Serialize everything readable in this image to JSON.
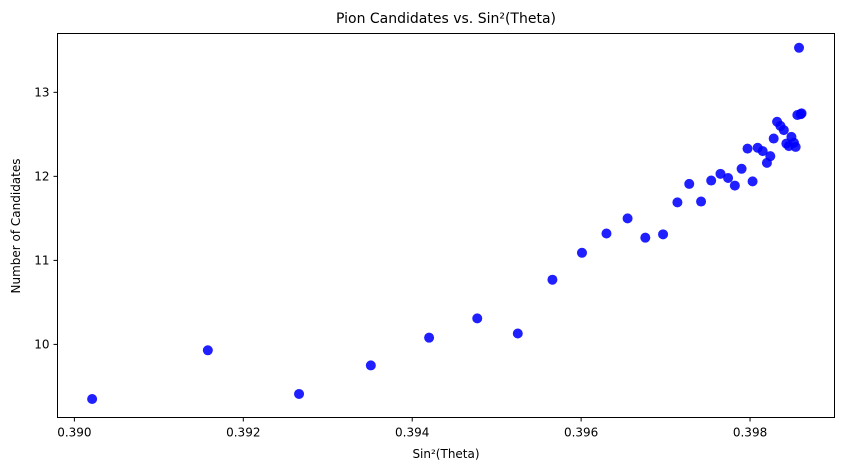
{
  "chart_data": {
    "type": "scatter",
    "title": "Pion Candidates vs. Sin²(Theta)",
    "xlabel": "Sin²(Theta)",
    "ylabel": "Number of Candidates",
    "xlim": [
      0.3898,
      0.399
    ],
    "ylim": [
      9.13,
      13.7
    ],
    "x_ticks": [
      {
        "value": 0.39,
        "label": "0.390"
      },
      {
        "value": 0.392,
        "label": "0.392"
      },
      {
        "value": 0.394,
        "label": "0.394"
      },
      {
        "value": 0.396,
        "label": "0.396"
      },
      {
        "value": 0.398,
        "label": "0.398"
      }
    ],
    "y_ticks": [
      {
        "value": 10,
        "label": "10"
      },
      {
        "value": 11,
        "label": "11"
      },
      {
        "value": 12,
        "label": "12"
      },
      {
        "value": 13,
        "label": "13"
      }
    ],
    "grid": false,
    "marker_color": "#0000ff",
    "points": [
      {
        "x": 0.39021,
        "y": 9.35
      },
      {
        "x": 0.39158,
        "y": 9.93
      },
      {
        "x": 0.39266,
        "y": 9.41
      },
      {
        "x": 0.39351,
        "y": 9.75
      },
      {
        "x": 0.3942,
        "y": 10.08
      },
      {
        "x": 0.39477,
        "y": 10.31
      },
      {
        "x": 0.39525,
        "y": 10.13
      },
      {
        "x": 0.39566,
        "y": 10.77
      },
      {
        "x": 0.39601,
        "y": 11.09
      },
      {
        "x": 0.3963,
        "y": 11.32
      },
      {
        "x": 0.39655,
        "y": 11.5
      },
      {
        "x": 0.39676,
        "y": 11.27
      },
      {
        "x": 0.39697,
        "y": 11.31
      },
      {
        "x": 0.39714,
        "y": 11.69
      },
      {
        "x": 0.39728,
        "y": 11.91
      },
      {
        "x": 0.39742,
        "y": 11.7
      },
      {
        "x": 0.39754,
        "y": 11.95
      },
      {
        "x": 0.39765,
        "y": 12.03
      },
      {
        "x": 0.39774,
        "y": 11.98
      },
      {
        "x": 0.39782,
        "y": 11.89
      },
      {
        "x": 0.3979,
        "y": 12.09
      },
      {
        "x": 0.39797,
        "y": 12.33
      },
      {
        "x": 0.39803,
        "y": 11.94
      },
      {
        "x": 0.39809,
        "y": 12.34
      },
      {
        "x": 0.39815,
        "y": 12.3
      },
      {
        "x": 0.3982,
        "y": 12.16
      },
      {
        "x": 0.39824,
        "y": 12.24
      },
      {
        "x": 0.39828,
        "y": 12.45
      },
      {
        "x": 0.39832,
        "y": 12.65
      },
      {
        "x": 0.39836,
        "y": 12.6
      },
      {
        "x": 0.3984,
        "y": 12.55
      },
      {
        "x": 0.39843,
        "y": 12.39
      },
      {
        "x": 0.39846,
        "y": 12.36
      },
      {
        "x": 0.39849,
        "y": 12.47
      },
      {
        "x": 0.39852,
        "y": 12.4
      },
      {
        "x": 0.39854,
        "y": 12.35
      },
      {
        "x": 0.39856,
        "y": 12.73
      },
      {
        "x": 0.39858,
        "y": 13.53
      },
      {
        "x": 0.3986,
        "y": 12.74
      },
      {
        "x": 0.39861,
        "y": 12.75
      }
    ]
  }
}
